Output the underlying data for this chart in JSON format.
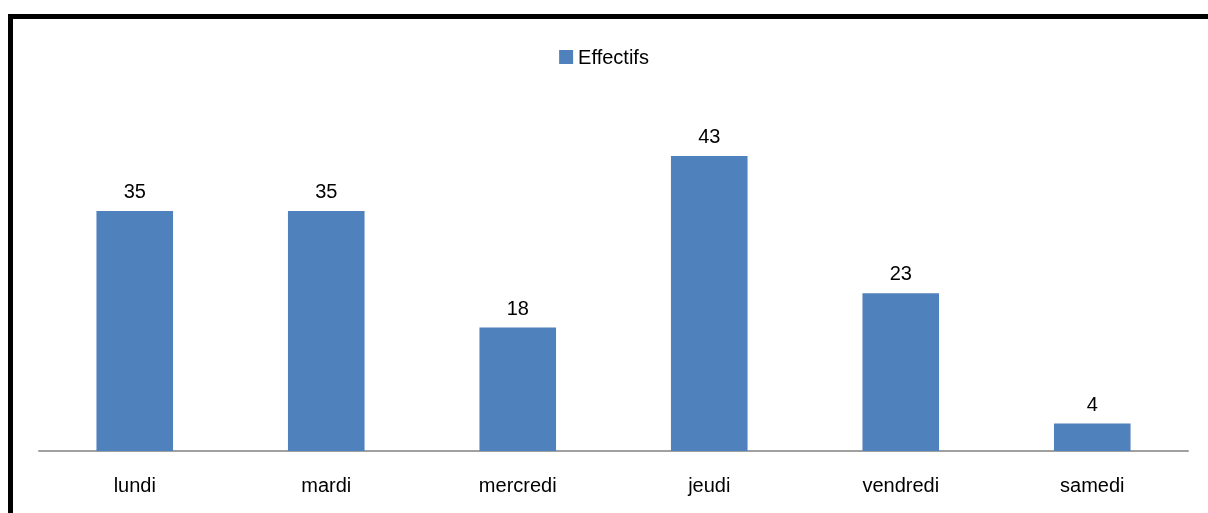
{
  "chart_data": {
    "type": "bar",
    "categories": [
      "lundi",
      "mardi",
      "mercredi",
      "jeudi",
      "vendredi",
      "samedi"
    ],
    "series": [
      {
        "name": "Effectifs",
        "color": "#4f81bd",
        "values": [
          35,
          35,
          18,
          43,
          23,
          4
        ]
      }
    ],
    "data_labels": true,
    "legend": "top",
    "grid": false
  }
}
